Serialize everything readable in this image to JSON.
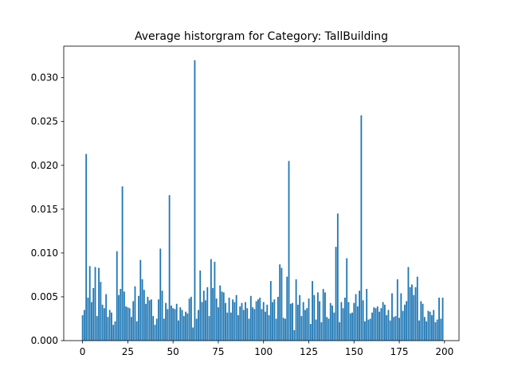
{
  "chart_data": {
    "type": "bar",
    "title": "Average historgram for Category: TallBuilding",
    "color": "#1f77b4",
    "x": [
      0,
      1,
      2,
      3,
      4,
      5,
      6,
      7,
      8,
      9,
      10,
      11,
      12,
      13,
      14,
      15,
      16,
      17,
      18,
      19,
      20,
      21,
      22,
      23,
      24,
      25,
      26,
      27,
      28,
      29,
      30,
      31,
      32,
      33,
      34,
      35,
      36,
      37,
      38,
      39,
      40,
      41,
      42,
      43,
      44,
      45,
      46,
      47,
      48,
      49,
      50,
      51,
      52,
      53,
      54,
      55,
      56,
      57,
      58,
      59,
      60,
      61,
      62,
      63,
      64,
      65,
      66,
      67,
      68,
      69,
      70,
      71,
      72,
      73,
      74,
      75,
      76,
      77,
      78,
      79,
      80,
      81,
      82,
      83,
      84,
      85,
      86,
      87,
      88,
      89,
      90,
      91,
      92,
      93,
      94,
      95,
      96,
      97,
      98,
      99,
      100,
      101,
      102,
      103,
      104,
      105,
      106,
      107,
      108,
      109,
      110,
      111,
      112,
      113,
      114,
      115,
      116,
      117,
      118,
      119,
      120,
      121,
      122,
      123,
      124,
      125,
      126,
      127,
      128,
      129,
      130,
      131,
      132,
      133,
      134,
      135,
      136,
      137,
      138,
      139,
      140,
      141,
      142,
      143,
      144,
      145,
      146,
      147,
      148,
      149,
      150,
      151,
      152,
      153,
      154,
      155,
      156,
      157,
      158,
      159,
      160,
      161,
      162,
      163,
      164,
      165,
      166,
      167,
      168,
      169,
      170,
      171,
      172,
      173,
      174,
      175,
      176,
      177,
      178,
      179,
      180,
      181,
      182,
      183,
      184,
      185,
      186,
      187,
      188,
      189,
      190,
      191,
      192,
      193,
      194,
      195,
      196,
      197,
      198,
      199
    ],
    "values": [
      0.0029,
      0.0035,
      0.0213,
      0.0049,
      0.0085,
      0.0044,
      0.006,
      0.0084,
      0.0028,
      0.0083,
      0.0067,
      0.0041,
      0.0037,
      0.0053,
      0.0027,
      0.0035,
      0.0032,
      0.0018,
      0.0022,
      0.0102,
      0.0052,
      0.0059,
      0.0176,
      0.0056,
      0.0039,
      0.0038,
      0.0037,
      0.0027,
      0.0045,
      0.0062,
      0.0022,
      0.0051,
      0.0092,
      0.007,
      0.0058,
      0.0042,
      0.005,
      0.0046,
      0.0047,
      0.0028,
      0.0018,
      0.0025,
      0.0047,
      0.0105,
      0.0057,
      0.0025,
      0.0043,
      0.0036,
      0.0166,
      0.004,
      0.0037,
      0.0036,
      0.0042,
      0.0023,
      0.0038,
      0.0035,
      0.0028,
      0.0033,
      0.0031,
      0.0048,
      0.005,
      0.0015,
      0.032,
      0.0025,
      0.0035,
      0.008,
      0.0044,
      0.0057,
      0.0046,
      0.0061,
      0.0028,
      0.0093,
      0.006,
      0.009,
      0.0048,
      0.0038,
      0.0063,
      0.0056,
      0.0055,
      0.0043,
      0.0032,
      0.0049,
      0.0032,
      0.0047,
      0.0044,
      0.0052,
      0.0029,
      0.0039,
      0.0043,
      0.0035,
      0.0044,
      0.0037,
      0.0025,
      0.0051,
      0.0038,
      0.0036,
      0.0045,
      0.0047,
      0.0049,
      0.0036,
      0.0044,
      0.0033,
      0.0041,
      0.0029,
      0.0068,
      0.0044,
      0.0047,
      0.0025,
      0.005,
      0.0087,
      0.0083,
      0.0026,
      0.0025,
      0.0073,
      0.0205,
      0.0042,
      0.0043,
      0.0012,
      0.007,
      0.0041,
      0.0052,
      0.0028,
      0.0044,
      0.0035,
      0.0037,
      0.0048,
      0.0019,
      0.0068,
      0.0052,
      0.0024,
      0.0055,
      0.0045,
      0.0021,
      0.0059,
      0.0055,
      0.0027,
      0.0025,
      0.0043,
      0.004,
      0.0032,
      0.0107,
      0.0145,
      0.0021,
      0.0044,
      0.0037,
      0.0049,
      0.0094,
      0.0044,
      0.0031,
      0.0032,
      0.0043,
      0.0053,
      0.0039,
      0.0057,
      0.0257,
      0.0046,
      0.0022,
      0.0059,
      0.0024,
      0.0025,
      0.0032,
      0.0038,
      0.0037,
      0.0039,
      0.0033,
      0.0037,
      0.0044,
      0.0041,
      0.0029,
      0.0035,
      0.0023,
      0.0054,
      0.0027,
      0.0028,
      0.007,
      0.0026,
      0.0054,
      0.0034,
      0.0041,
      0.0045,
      0.0084,
      0.0061,
      0.0064,
      0.0052,
      0.0061,
      0.0073,
      0.0023,
      0.0045,
      0.0042,
      0.0027,
      0.0022,
      0.0034,
      0.0033,
      0.0029,
      0.0035,
      0.0021,
      0.0024,
      0.0049,
      0.0025,
      0.0049
    ],
    "xlim": [
      -10.4,
      208
    ],
    "xticks": [
      0,
      25,
      50,
      75,
      100,
      125,
      150,
      175,
      200
    ],
    "ylim": [
      0,
      0.0336
    ],
    "yticks": [
      {
        "value": 0,
        "label": "0.000"
      },
      {
        "value": 0.005,
        "label": "0.005"
      },
      {
        "value": 0.01,
        "label": "0.010"
      },
      {
        "value": 0.015,
        "label": "0.015"
      },
      {
        "value": 0.02,
        "label": "0.020"
      },
      {
        "value": 0.025,
        "label": "0.025"
      },
      {
        "value": 0.03,
        "label": "0.030"
      }
    ]
  }
}
